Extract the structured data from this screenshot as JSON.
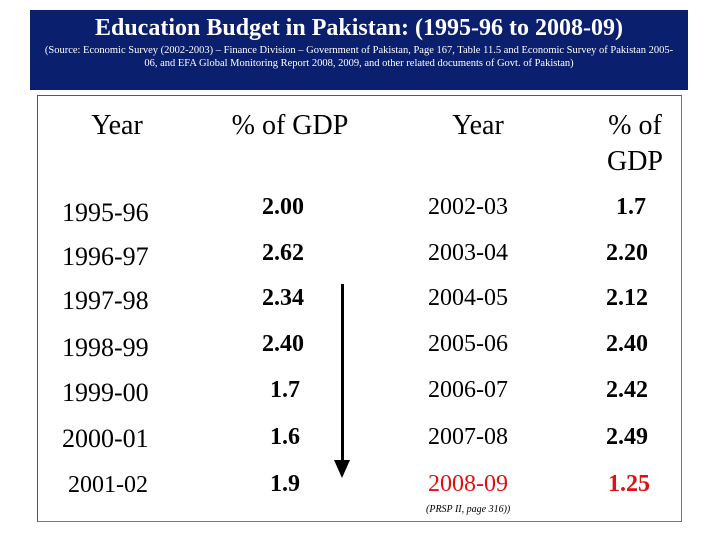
{
  "header": {
    "title": "Education Budget in Pakistan: (1995-96 to 2008-09)",
    "source": "(Source: Economic Survey (2002-2003) – Finance Division – Government of Pakistan, Page 167, Table 11.5 and Economic Survey of Pakistan 2005-06, and EFA Global Monitoring Report 2008, 2009, and other related documents of Govt. of Pakistan)"
  },
  "columns": {
    "year_left": "Year",
    "gdp_left": "% of GDP",
    "year_right": "Year",
    "gdp_right_line1": "% of",
    "gdp_right_line2": "GDP"
  },
  "rows": [
    {
      "year_left": "1995-96",
      "gdp_left": "2.00",
      "year_right": "2002-03",
      "gdp_right": "1.7"
    },
    {
      "year_left": "1996-97",
      "gdp_left": "2.62",
      "year_right": "2003-04",
      "gdp_right": "2.20"
    },
    {
      "year_left": "1997-98",
      "gdp_left": "2.34",
      "year_right": "2004-05",
      "gdp_right": "2.12"
    },
    {
      "year_left": "1998-99",
      "gdp_left": "2.40",
      "year_right": "2005-06",
      "gdp_right": "2.40"
    },
    {
      "year_left": "1999-00",
      "gdp_left": "1.7",
      "year_right": "2006-07",
      "gdp_right": "2.42"
    },
    {
      "year_left": "2000-01",
      "gdp_left": "1.6",
      "year_right": "2007-08",
      "gdp_right": "2.49"
    },
    {
      "year_left": "2001-02",
      "gdp_left": "1.9",
      "year_right": "2008-09",
      "gdp_right": "1.25"
    }
  ],
  "footnote": "(PRSP II, page 316))",
  "colors": {
    "header_bg": "#0a1f6e",
    "highlight": "#e01010"
  }
}
